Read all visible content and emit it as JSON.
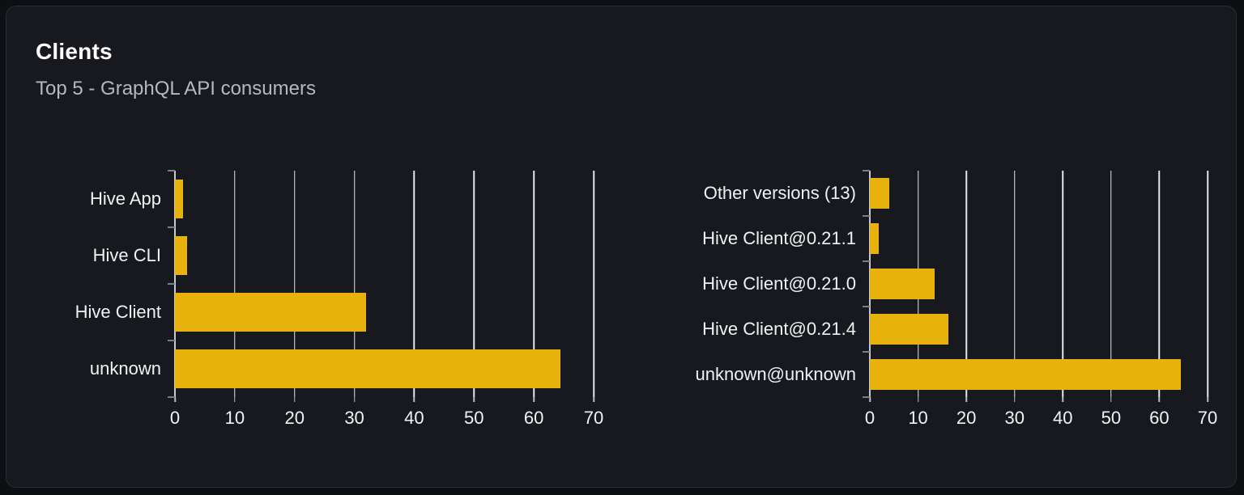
{
  "card": {
    "title": "Clients",
    "subtitle": "Top 5 - GraphQL API consumers"
  },
  "colors": {
    "bar": "#e9b10b",
    "gridline": "#e3e6eb",
    "axis_line": "#c6cad0",
    "axis_tick": "#7b8087",
    "card_background": "#17191f",
    "page_background": "#0d0f13",
    "title_text": "#ffffff",
    "subtitle_text": "#b4b9bf",
    "label_text": "#f0f2f4"
  },
  "chart_data": [
    {
      "type": "bar",
      "orientation": "horizontal",
      "name": "clients",
      "title": "",
      "categories": [
        "Hive App",
        "Hive CLI",
        "Hive Client",
        "unknown"
      ],
      "values": [
        1.4,
        2,
        32,
        64.5
      ],
      "xticks": [
        0,
        10,
        20,
        30,
        40,
        50,
        60,
        70
      ],
      "xlim": [
        0,
        70
      ],
      "grid": true,
      "legend": false,
      "bar_color": "#e9b10b"
    },
    {
      "type": "bar",
      "orientation": "horizontal",
      "name": "client-versions",
      "title": "",
      "categories": [
        "Other versions (13)",
        "Hive Client@0.21.1",
        "Hive Client@0.21.0",
        "Hive Client@0.21.4",
        "unknown@unknown"
      ],
      "values": [
        4,
        1.8,
        13.5,
        16.3,
        64.5
      ],
      "xticks": [
        0,
        10,
        20,
        30,
        40,
        50,
        60,
        70
      ],
      "xlim": [
        0,
        70
      ],
      "grid": true,
      "legend": false,
      "bar_color": "#e9b10b"
    }
  ]
}
